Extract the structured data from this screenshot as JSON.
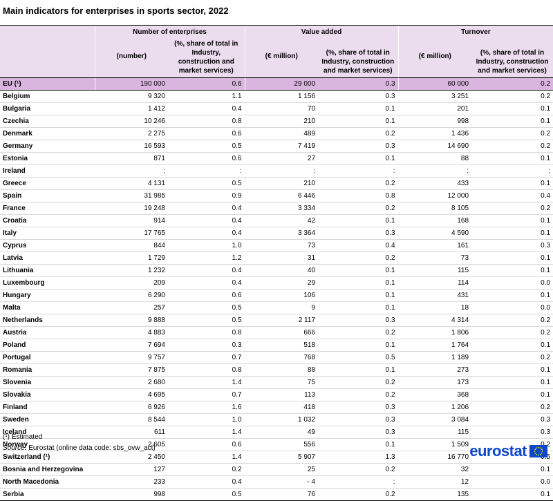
{
  "title": "Main indicators for enterprises in sports sector, 2022",
  "header": {
    "groups": [
      "Number of enterprises",
      "Value added",
      "Turnover"
    ],
    "sub": [
      "(number)",
      "(%, share of total in Industry, construction and market services)",
      "(€ million)",
      "(%, share of total in Industry, construction and market services)",
      "(€ million)",
      "(%, share of total in Industry, construction and market services)"
    ]
  },
  "rows": [
    {
      "name": "EU (¹)",
      "v": [
        "190 000",
        "0.6",
        "29 000",
        "0.3",
        "60 000",
        "0.2"
      ],
      "cls": "eu"
    },
    {
      "name": "Belgium",
      "v": [
        "9 320",
        "1.1",
        "1 156",
        "0.3",
        "3 251",
        "0.2"
      ]
    },
    {
      "name": "Bulgaria",
      "v": [
        "1 412",
        "0.4",
        "70",
        "0.1",
        "201",
        "0.1"
      ]
    },
    {
      "name": "Czechia",
      "v": [
        "10 246",
        "0.8",
        "210",
        "0.1",
        "998",
        "0.1"
      ]
    },
    {
      "name": "Denmark",
      "v": [
        "2 275",
        "0.6",
        "489",
        "0.2",
        "1 436",
        "0.2"
      ]
    },
    {
      "name": "Germany",
      "v": [
        "16 593",
        "0.5",
        "7 419",
        "0.3",
        "14 690",
        "0.2"
      ]
    },
    {
      "name": "Estonia",
      "v": [
        "871",
        "0.6",
        "27",
        "0.1",
        "88",
        "0.1"
      ]
    },
    {
      "name": "Ireland",
      "v": [
        ":",
        ":",
        ":",
        ":",
        ":",
        ":"
      ]
    },
    {
      "name": "Greece",
      "v": [
        "4 131",
        "0.5",
        "210",
        "0.2",
        "433",
        "0.1"
      ]
    },
    {
      "name": "Spain",
      "v": [
        "31 985",
        "0.9",
        "6 446",
        "0.8",
        "12 000",
        "0.4"
      ]
    },
    {
      "name": "France",
      "v": [
        "19 248",
        "0.4",
        "3 334",
        "0.2",
        "8 105",
        "0.2"
      ]
    },
    {
      "name": "Croatia",
      "v": [
        "914",
        "0.4",
        "42",
        "0.1",
        "168",
        "0.1"
      ]
    },
    {
      "name": "Italy",
      "v": [
        "17 765",
        "0.4",
        "3 364",
        "0.3",
        "4 590",
        "0.1"
      ]
    },
    {
      "name": "Cyprus",
      "v": [
        "844",
        "1.0",
        "73",
        "0.4",
        "161",
        "0.3"
      ]
    },
    {
      "name": "Latvia",
      "v": [
        "1 729",
        "1.2",
        "31",
        "0.2",
        "73",
        "0.1"
      ]
    },
    {
      "name": "Lithuania",
      "v": [
        "1 232",
        "0.4",
        "40",
        "0.1",
        "115",
        "0.1"
      ]
    },
    {
      "name": "Luxembourg",
      "v": [
        "209",
        "0.4",
        "29",
        "0.1",
        "114",
        "0.0"
      ]
    },
    {
      "name": "Hungary",
      "v": [
        "6 290",
        "0.6",
        "106",
        "0.1",
        "431",
        "0.1"
      ]
    },
    {
      "name": "Malta",
      "v": [
        "257",
        "0.5",
        "9",
        "0.1",
        "18",
        "0.0"
      ]
    },
    {
      "name": "Netherlands",
      "v": [
        "9 888",
        "0.5",
        "2 117",
        "0.3",
        "4 314",
        "0.2"
      ]
    },
    {
      "name": "Austria",
      "v": [
        "4 883",
        "0.8",
        "666",
        "0.2",
        "1 806",
        "0.2"
      ]
    },
    {
      "name": "Poland",
      "v": [
        "7 694",
        "0.3",
        "518",
        "0.1",
        "1 764",
        "0.1"
      ]
    },
    {
      "name": "Portugal",
      "v": [
        "9 757",
        "0.7",
        "768",
        "0.5",
        "1 189",
        "0.2"
      ]
    },
    {
      "name": "Romania",
      "v": [
        "7 875",
        "0.8",
        "88",
        "0.1",
        "273",
        "0.1"
      ]
    },
    {
      "name": "Slovenia",
      "v": [
        "2 680",
        "1.4",
        "75",
        "0.2",
        "173",
        "0.1"
      ]
    },
    {
      "name": "Slovakia",
      "v": [
        "4 695",
        "0.7",
        "113",
        "0.2",
        "368",
        "0.1"
      ]
    },
    {
      "name": "Finland",
      "v": [
        "6 926",
        "1.6",
        "418",
        "0.3",
        "1 206",
        "0.2"
      ]
    },
    {
      "name": "Sweden",
      "v": [
        "8 544",
        "1.0",
        "1 032",
        "0.3",
        "3 084",
        "0.3"
      ]
    },
    {
      "name": "Iceland",
      "v": [
        "611",
        "1.4",
        "49",
        "0.3",
        "115",
        "0.3"
      ],
      "cls": "grpstart"
    },
    {
      "name": "Norway",
      "v": [
        "2 605",
        "0.6",
        "556",
        "0.1",
        "1 509",
        "0.2"
      ]
    },
    {
      "name": "Switzerland (¹)",
      "v": [
        "2 450",
        "1.4",
        "5 907",
        "1.3",
        "16 770",
        "0.5"
      ]
    },
    {
      "name": "Bosnia and Herzegovina",
      "v": [
        "127",
        "0.2",
        "25",
        "0.2",
        "32",
        "0.1"
      ],
      "cls": "grpstart"
    },
    {
      "name": "North Macedonia",
      "v": [
        "233",
        "0.4",
        "- 4",
        ":",
        "12",
        "0.0"
      ]
    },
    {
      "name": "Serbia",
      "v": [
        "998",
        "0.5",
        "76",
        "0.2",
        "135",
        "0.1"
      ],
      "cls": "last"
    }
  ],
  "footnote": "(¹) Estimated",
  "source_label": "Source:",
  "source_text": "Eurostat (online data code: sbs_ovw_act)",
  "logo_text": "eurostat",
  "colors": {
    "header_bg": "#ebdcee",
    "eu_row_bg": "#d9b6de",
    "logo_blue": "#0e47cb",
    "flag_stars": "#ffdd00"
  }
}
